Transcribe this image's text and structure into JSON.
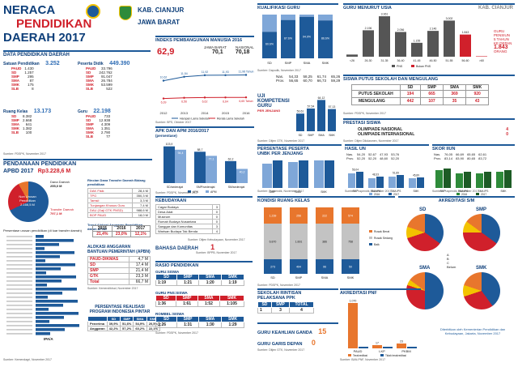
{
  "header": {
    "title1": "NERACA",
    "title2": "PENDIDIKAN",
    "title3": "DAERAH 2017",
    "region1": "KAB. CIANJUR",
    "region2": "JAWA BARAT"
  },
  "data_pend": {
    "title": "DATA PENDIDIKAN DAERAH",
    "satuan_label": "Satuan Pendidikan",
    "satuan_total": "3.252",
    "satuan": [
      [
        "PAUD",
        "1.430"
      ],
      [
        "SD",
        "1.257"
      ],
      [
        "SMP",
        "295"
      ],
      [
        "SMA",
        "87"
      ],
      [
        "SMK",
        "175"
      ],
      [
        "SLB",
        "8"
      ]
    ],
    "peserta_label": "Peserta Didik",
    "peserta_total": "449.390",
    "peserta": [
      [
        "PAUD",
        "33.796"
      ],
      [
        "SD",
        "242.762"
      ],
      [
        "SMP",
        "91.047"
      ],
      [
        "SMA",
        "26.784"
      ],
      [
        "SMK",
        "53.599"
      ],
      [
        "SLB",
        "522"
      ]
    ],
    "ruang_label": "Ruang Kelas",
    "ruang_total": "13.173",
    "ruang": [
      [
        "SD",
        "8.382"
      ],
      [
        "SMP",
        "2.668"
      ],
      [
        "SMA",
        "641"
      ],
      [
        "SMK",
        "1.382"
      ],
      [
        "SLB",
        "100"
      ]
    ],
    "guru_label": "Guru",
    "guru_total": "22.198",
    "guru": [
      [
        "PAUD",
        "733"
      ],
      [
        "SD",
        "12.938"
      ],
      [
        "SMP",
        "4.309"
      ],
      [
        "SMA",
        "1.351"
      ],
      [
        "SMK",
        "2.790"
      ],
      [
        "SLB",
        "77"
      ]
    ],
    "source": "Sumber: PDSPK, November 2017"
  },
  "ipm": {
    "title": "INDEKS PEMBANGUNAN MANUSIA 2016",
    "value": "62,9",
    "jabar_label": "JAWA BARAT",
    "jabar": "70,1",
    "nas_label": "NASIONAL",
    "nas": "70,18",
    "years": [
      "2012",
      "2013",
      "2014",
      "2015",
      "2016"
    ],
    "hls": [
      "10,62",
      "11,54",
      "11,92",
      "11,93",
      "11,98 Tahun"
    ],
    "rls": [
      "6,39",
      "6,56",
      "6,62",
      "6,64",
      "6,65 Tahun"
    ],
    "legend1": "Harapan Lama Sekolah",
    "legend2": "Rerata Lama Sekolah",
    "source": "Sumber: BPS, Oktober 2017"
  },
  "kualifikasi": {
    "title": "KUALIFIKASI GURU",
    "cats": [
      "SD",
      "SMP",
      "SMA",
      "SMK"
    ],
    "values": [
      [
        "60.6%",
        "39.4%"
      ],
      [
        "87.6%",
        "12.4%"
      ],
      [
        "94.9%",
        "5.1%"
      ],
      [
        "86.6%",
        "13.4%"
      ]
    ],
    "source": "Sumber: Dapodik, November 2017"
  },
  "usia": {
    "title": "GURU MENURUT USIA",
    "region": "KAB. CIANJUR",
    "cats": [
      "<26",
      "26-30",
      "31-35",
      "36-40",
      "41-45",
      "46-50",
      "51-55",
      "56-60",
      ">60"
    ],
    "values": [
      180,
      2196,
      3361,
      2056,
      1155,
      2146,
      3002,
      1843,
      37
    ],
    "labels": [
      "",
      "2.196",
      "3.361",
      "2.056",
      "1.155",
      "2.146",
      "3.002",
      "1.843",
      ""
    ],
    "note1": "GURU",
    "note2": "PENSIUN",
    "note3": "5 TAHUN",
    "note4": "KE DEPAN",
    "note_value": "1.843",
    "note_unit": "ORANG",
    "legend1": "PNS",
    "legend2": "Bukan PNS",
    "source": "Sumber: Dapodik, November 2017"
  },
  "uji": {
    "title1": "UJI",
    "title2": "KOMPETENSI",
    "title3": "GURU",
    "title4": "PER JENJANG",
    "row1": "Nas.",
    "row2": "Prov.",
    "nas": [
      "54,33",
      "58,25",
      "61,74",
      "65,26"
    ],
    "prov": [
      "56,65",
      "60,70",
      "66,73",
      "59,29"
    ],
    "cats": [
      "SD",
      "SMP",
      "SMA",
      "SMK"
    ],
    "values": [
      "53,61",
      "57,54",
      "64,12",
      "57,13"
    ],
    "source": "Sumber: Ditjen GTK, November 2017"
  },
  "siswa_putus": {
    "title": "SISWA PUTUS SEKOLAH DAN MENGULANG",
    "cols": [
      "SD",
      "SMP",
      "SMA",
      "SMK"
    ],
    "rows": [
      [
        "PUTUS SEKOLAH",
        "194",
        "665",
        "369",
        "920"
      ],
      [
        "MENGULANG",
        "442",
        "107",
        "35",
        "43"
      ]
    ],
    "source": "Sumber: PDSPK, November 2017"
  },
  "prestasi": {
    "title": "PRESTASI SISWA",
    "rows": [
      [
        "OLIMPIADE NASIONAL",
        "4"
      ],
      [
        "OLIMPIADE INTERNASIONAL",
        "0"
      ]
    ],
    "source": "Sumber: Ditjen Dikdasmen, November 2017"
  },
  "apk": {
    "title": "APK DAN APM 2016/2017",
    "subtitle": "(persentase)",
    "cats": [
      "SD/sederajat",
      "SMP/sederajat",
      "SM/sederajat"
    ],
    "apk": [
      "103,9",
      "88,7",
      "62,2"
    ],
    "apm": [
      "94,4",
      "77,1",
      "40,2"
    ],
    "legend1": "APK",
    "legend2": "APM",
    "source": "Sumber: PDSPK, November 2017"
  },
  "unbk": {
    "title": "PERSENTASE PESERTA",
    "title2": "UNBK PER JENJANG",
    "cats": [
      "SMP",
      "SMA",
      "SMK"
    ],
    "source": "Sumber: Puspendik, November 2017"
  },
  "hasil_un": {
    "title": "HASIL UN",
    "row1": "Nas.",
    "row2": "Prov.",
    "nas": [
      "54,20",
      "52,67",
      "47,93",
      "53,76"
    ],
    "prov": [
      "52,20",
      "52,20",
      "48,60",
      "52,20"
    ],
    "cats": [
      "SMP",
      "SMA IPA",
      "SMA IPS",
      "SMK"
    ],
    "values": [
      "56,04",
      "48,33",
      "51,89",
      "45,89"
    ],
    "legend1": "2016",
    "legend2": "2017",
    "source": "Sumber: Puspendik, November 2017"
  },
  "skor_iiun": {
    "title": "SKOR IIUN",
    "row1": "Nas.",
    "row2": "Prov.",
    "nas": [
      "76,05",
      "66,69",
      "65,65",
      "62,61"
    ],
    "prov": [
      "83,14",
      "83,90",
      "80,65",
      "83,72"
    ],
    "cats": [
      "SMP",
      "SMA IPA",
      "SMA IPS",
      "SMK"
    ],
    "legend1": "2016",
    "legend2": "2017",
    "source": "Sumber: Puspendik, November 2017"
  },
  "pendanaan": {
    "title": "PENDANAAN PENDIDIKAN",
    "apbd_label": "APBD 2017",
    "apbd_value": "Rp3.228,6 M",
    "pie_label1": "Non Urusan Pendidikan",
    "pie_value1": "2.166,5 M",
    "pie_label2": "Transfer Daerah",
    "pie_value2": "797,1 M",
    "dana_label": "Dana Daerah",
    "dana_value": "255,0 M",
    "rincian_title": "Rincian Dana Transfer Daerah Bidang pendidikan",
    "rincian": [
      [
        "DAK Fisik",
        "28,4 M"
      ],
      [
        "TPG",
        "350,3 M"
      ],
      [
        "Tamsil",
        "3,3 M"
      ],
      [
        "Tunjangan Khusus Guru",
        "7,4 M"
      ],
      [
        "DAU (Gaji GTK PNSD)",
        "988,6 M"
      ],
      [
        "BOP PAUD",
        "18,0 M"
      ]
    ],
    "trend_title": "Trend Alokasi Anggaran Pendidikan dalam APBD",
    "trend_years": [
      "2015",
      "2016",
      "2017"
    ],
    "trend_values": [
      "21,4%",
      "23,0%",
      "12,1%"
    ],
    "persentase_title": "Persentase urusan pendidikan (di luar transfer daerah)",
    "persentase_label": "IPA/A",
    "source": "Sumber: Kemendagri, November 2017"
  },
  "alokasi": {
    "title": "ALOKASI ANGGARAN",
    "title2": "BANTUAN PEMERINTAH (APBN)",
    "rows": [
      [
        "PAUD-DIKMAS",
        "4,7 M"
      ],
      [
        "SD",
        "17,4 M"
      ],
      [
        "SMP",
        "21,4 M"
      ],
      [
        "GTK",
        "23,3 M"
      ],
      [
        "Total",
        "66,7 M"
      ]
    ],
    "source": "Sumber: Kemendikbud, November 2017"
  },
  "realisasi": {
    "title": "PERSENTASE REALISASI",
    "title2": "PROGRAM INDONESIA PINTAR",
    "cols": [
      "SD",
      "SMP",
      "SMA",
      "SMK"
    ],
    "rows": [
      [
        "Penerima",
        "39,9%",
        "51,6%",
        "54,9%",
        "20,5%"
      ],
      [
        "Anggaran",
        "42,2%",
        "57,2%",
        "60,2%",
        "22,1%"
      ]
    ],
    "source": "Sumber: Kemendikbud, November 2017"
  },
  "kebudayaan": {
    "title": "KEBUDAYAAN",
    "rows": [
      [
        "Cagar Budaya",
        "3"
      ],
      [
        "Desa Adat",
        "0"
      ],
      [
        "Museum",
        "0"
      ],
      [
        "Rumah Budaya Nusantara",
        "0"
      ],
      [
        "Sanggar dan Komunitas",
        "3"
      ],
      [
        "Warisan Budaya Tak Benda",
        "4"
      ]
    ],
    "source": "Sumber: Ditjen Kebudayaan, November 2017"
  },
  "bahasa": {
    "title": "BAHASA DAERAH",
    "value": "1",
    "source": "Sumber: BPPB, November 2017"
  },
  "rasio": {
    "title": "RASIO PENDIDIKAN",
    "sub1": "GURU:SISWA",
    "cols": [
      "SD",
      "SMP",
      "SMA",
      "SMK"
    ],
    "gs": [
      "1:19",
      "1:21",
      "1:20",
      "1:19"
    ],
    "sub2": "GURU PNS:SISWA",
    "gps": [
      "1:36",
      "1:61",
      "1:52",
      "1:105"
    ],
    "sub3": "ROMBEL:SISWA",
    "rs": [
      "1:26",
      "1:31",
      "1:30",
      "1:29"
    ],
    "source": "Sumber: PDSPK, November 2017"
  },
  "kondisi": {
    "title": "KONDISI RUANG KELAS",
    "cats": [
      "SD",
      "SMP",
      "SMA",
      "SMK"
    ],
    "labels": [
      [
        "1.239",
        "6.870",
        "273"
      ],
      [
        "256",
        "1.891",
        "494"
      ],
      [
        "222",
        "386",
        "96"
      ],
      [
        "574",
        "758",
        "50"
      ]
    ],
    "legend": [
      "Rusak Berat",
      "Rusak Sedang",
      "Baik"
    ],
    "source": "Sumber: PDSPK, November 2017"
  },
  "akreditasi_sm": {
    "title": "AKREDITASI S/M",
    "charts": [
      "SD",
      "SMP",
      "SMA",
      "SMK"
    ],
    "legend": [
      "A",
      "B",
      "C",
      "Belum"
    ],
    "source": "Sumber: BAN-S/M, November 2017"
  },
  "sekolah_rujukan": {
    "title": "SEKOLAH RINTISAN",
    "title2": "PELAKSANA PPK",
    "cols": [
      "SD",
      "SMP",
      "TOTAL"
    ],
    "values": [
      "1",
      "3",
      "4"
    ],
    "source": "Sumber: Kemendikbud, November 2017"
  },
  "keahlian": {
    "title": "GURU KEAHLIAN GANDA",
    "value": "15",
    "title2": "GURU GARIS DEPAN",
    "value2": "0",
    "source": "Sumber: Ditjen GTK, November 2017"
  },
  "pnf": {
    "title": "AKREDITASI PNF",
    "cats": [
      "PAUD",
      "LKP",
      "PKBM"
    ],
    "values": [
      "1.070",
      "17",
      "23"
    ],
    "legend1": "Terakreditasi",
    "legend2": "Tidak terakreditasi",
    "source": "Sumber: BAN-PNF, November 2017"
  },
  "footer": {
    "text": "Diterbitkan oleh Kementerian Pendidikan dan Kebudayaan, Jakarta, November 2017"
  },
  "colors": {
    "blue": "#1e5a99",
    "red": "#d0202b",
    "orange": "#e8762d",
    "green": "#2e8b3a"
  }
}
